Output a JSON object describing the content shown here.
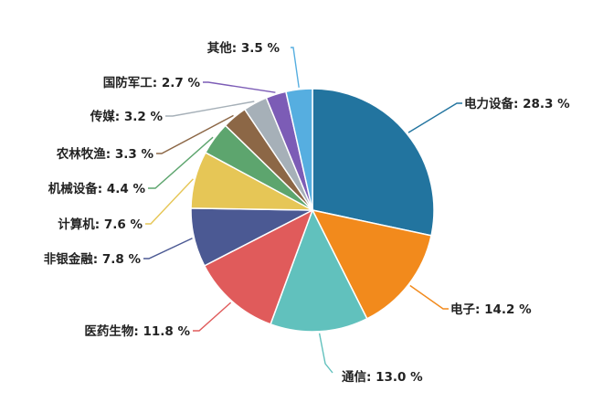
{
  "chart_data": {
    "type": "pie",
    "start_angle_deg": 0,
    "direction": "clockwise",
    "slices": [
      {
        "name": "电力设备",
        "value": 28.3,
        "label": "电力设备: 28.3 %",
        "color": "#22749f"
      },
      {
        "name": "电子",
        "value": 14.2,
        "label": "电子: 14.2 %",
        "color": "#f28a1c"
      },
      {
        "name": "通信",
        "value": 13.0,
        "label": "通信: 13.0 %",
        "color": "#61c1bd"
      },
      {
        "name": "医药生物",
        "value": 11.8,
        "label": "医药生物: 11.8 %",
        "color": "#e05b5b"
      },
      {
        "name": "非银金融",
        "value": 7.8,
        "label": "非银金融: 7.8 %",
        "color": "#4b5993"
      },
      {
        "name": "计算机",
        "value": 7.6,
        "label": "计算机: 7.6 %",
        "color": "#e6c656"
      },
      {
        "name": "机械设备",
        "value": 4.4,
        "label": "机械设备: 4.4 %",
        "color": "#5da56e"
      },
      {
        "name": "农林牧渔",
        "value": 3.3,
        "label": "农林牧渔: 3.3 %",
        "color": "#8c6746"
      },
      {
        "name": "传媒",
        "value": 3.2,
        "label": "传媒: 3.2 %",
        "color": "#a6b0b8"
      },
      {
        "name": "国防军工",
        "value": 2.7,
        "label": "国防军工: 2.7 %",
        "color": "#7c5cb6"
      },
      {
        "name": "其他",
        "value": 3.5,
        "label": "其他: 3.5 %",
        "color": "#56aee0"
      }
    ]
  }
}
